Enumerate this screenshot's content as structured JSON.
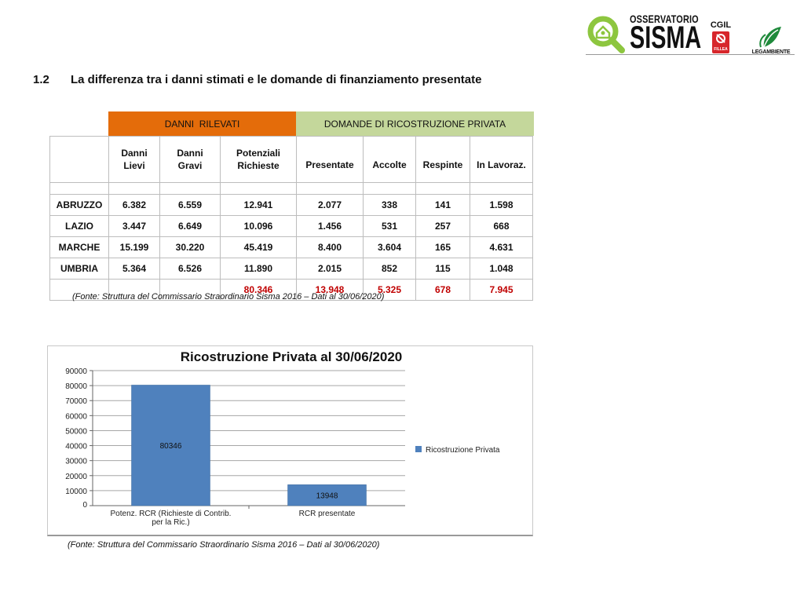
{
  "logos": {
    "osservatorio_small": "OSSERVATORIO",
    "osservatorio_big": "SISMA",
    "cgil": "CGIL",
    "fillea": "FILLEA",
    "legambiente": "LEGAMBIENTE"
  },
  "section": {
    "number": "1.2",
    "title": "La differenza tra i danni stimati e le domande di finanziamento presentate"
  },
  "table": {
    "group_headers": {
      "danni": "DANNI  RILEVATI",
      "domande": "DOMANDE DI RICOSTRUZIONE PRIVATA"
    },
    "columns": [
      "",
      "Danni Lievi",
      "Danni Gravi",
      "Potenziali Richieste",
      "Presentate",
      "Accolte",
      "Respinte",
      "In Lavoraz."
    ],
    "rows": [
      [
        "ABRUZZO",
        "6.382",
        "6.559",
        "12.941",
        "2.077",
        "338",
        "141",
        "1.598"
      ],
      [
        "LAZIO",
        "3.447",
        "6.649",
        "10.096",
        "1.456",
        "531",
        "257",
        "668"
      ],
      [
        "MARCHE",
        "15.199",
        "30.220",
        "45.419",
        "8.400",
        "3.604",
        "165",
        "4.631"
      ],
      [
        "UMBRIA",
        "5.364",
        "6.526",
        "11.890",
        "2.015",
        "852",
        "115",
        "1.048"
      ]
    ],
    "totals": [
      "",
      "",
      "",
      "80.346",
      "13.948",
      "5.325",
      "678",
      "7.945"
    ],
    "source": "(Fonte: Struttura del Commissario Straordinario Sisma 2016 – Dati al 30/06/2020)"
  },
  "chart_data": {
    "type": "bar",
    "title": "Ricostruzione Privata al 30/06/2020",
    "categories": [
      "Potenz. RCR (Richieste di Contrib. per la Ric.)",
      "RCR presentate"
    ],
    "category_lines": [
      [
        "Potenz. RCR (Richieste di Contrib.",
        "per la Ric.)"
      ],
      [
        "RCR presentate"
      ]
    ],
    "series": [
      {
        "name": "Ricostruzione Privata",
        "values": [
          80346,
          13948
        ],
        "color": "#4f81bd"
      }
    ],
    "data_labels": [
      "80346",
      "13948"
    ],
    "ylim": [
      0,
      90000
    ],
    "yticks": [
      0,
      10000,
      20000,
      30000,
      40000,
      50000,
      60000,
      70000,
      80000,
      90000
    ],
    "grid": true,
    "legend": "right",
    "xlabel": "",
    "ylabel": ""
  },
  "chart_source": "(Fonte: Struttura del Commissario Straordinario Sisma 2016 – Dati al 30/06/2020)",
  "colors": {
    "orange_band": "#e46c0a",
    "green_band": "#c4d79b",
    "total_red": "#c00000",
    "bar_blue": "#4f81bd",
    "logo_green": "#8dc63f",
    "cgil_red": "#d7262b"
  }
}
